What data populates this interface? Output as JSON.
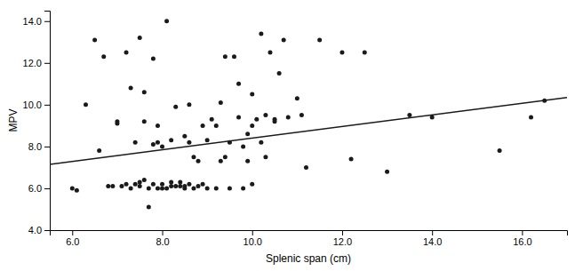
{
  "chart_data": {
    "type": "scatter",
    "xlabel": "Splenic span (cm)",
    "ylabel": "MPV",
    "xlim": [
      5.5,
      17.0
    ],
    "ylim": [
      4.0,
      14.5
    ],
    "xticks": [
      {
        "value": 6.0,
        "label": "6.0"
      },
      {
        "value": 8.0,
        "label": "8.0"
      },
      {
        "value": 10.0,
        "label": "10.0"
      },
      {
        "value": 12.0,
        "label": "12.0"
      },
      {
        "value": 14.0,
        "label": "14.0"
      },
      {
        "value": 16.0,
        "label": "16.0"
      }
    ],
    "yticks": [
      {
        "value": 4.0,
        "label": "4.0"
      },
      {
        "value": 6.0,
        "label": "6.0"
      },
      {
        "value": 8.0,
        "label": "8.0"
      },
      {
        "value": 10.0,
        "label": "10.0"
      },
      {
        "value": 12.0,
        "label": "12.0"
      },
      {
        "value": 14.0,
        "label": "14.0"
      }
    ],
    "grid": false,
    "series": [
      {
        "type": "scatter",
        "color": "#1a1a1a",
        "x": [
          6.1,
          6.0,
          6.3,
          6.5,
          6.6,
          6.7,
          6.8,
          6.9,
          7.0,
          7.0,
          7.1,
          7.2,
          7.2,
          7.3,
          7.3,
          7.4,
          7.4,
          7.5,
          7.5,
          7.5,
          7.6,
          7.6,
          7.6,
          7.7,
          7.7,
          7.8,
          7.8,
          7.8,
          7.9,
          7.9,
          7.9,
          8.0,
          8.0,
          8.0,
          8.1,
          8.1,
          8.2,
          8.2,
          8.2,
          8.3,
          8.3,
          8.4,
          8.4,
          8.5,
          8.5,
          8.5,
          8.6,
          8.6,
          8.6,
          8.7,
          8.7,
          8.8,
          8.8,
          8.9,
          8.9,
          9.0,
          9.0,
          9.1,
          9.2,
          9.2,
          9.3,
          9.3,
          9.4,
          9.4,
          9.5,
          9.5,
          9.6,
          9.7,
          9.7,
          9.8,
          9.8,
          9.9,
          9.9,
          10.0,
          10.0,
          10.0,
          10.1,
          10.2,
          10.2,
          10.3,
          10.3,
          10.4,
          10.5,
          10.5,
          10.6,
          10.7,
          10.8,
          11.0,
          11.1,
          11.2,
          11.5,
          12.0,
          12.2,
          12.5,
          13.0,
          13.5,
          14.0,
          15.5,
          16.2,
          16.5
        ],
        "values": [
          5.9,
          6.0,
          10.0,
          13.1,
          7.8,
          12.3,
          6.1,
          6.1,
          9.1,
          9.2,
          6.1,
          6.2,
          12.5,
          10.8,
          6.0,
          6.2,
          8.2,
          6.1,
          6.3,
          13.2,
          6.4,
          9.2,
          10.6,
          5.1,
          6.0,
          6.2,
          8.1,
          12.2,
          6.0,
          8.2,
          9.0,
          6.0,
          6.2,
          8.0,
          6.0,
          14.0,
          6.1,
          6.3,
          8.3,
          6.1,
          9.9,
          6.1,
          6.3,
          6.0,
          6.1,
          8.5,
          6.2,
          8.2,
          10.0,
          6.0,
          7.5,
          6.1,
          7.3,
          6.2,
          9.0,
          6.0,
          8.3,
          9.3,
          6.0,
          9.0,
          7.3,
          10.1,
          12.3,
          7.5,
          6.0,
          8.2,
          12.3,
          9.4,
          11.0,
          6.0,
          8.0,
          7.3,
          8.6,
          6.2,
          9.0,
          10.5,
          9.3,
          8.2,
          13.4,
          7.5,
          9.5,
          12.5,
          9.2,
          9.3,
          11.5,
          13.1,
          9.4,
          10.3,
          9.5,
          7.0,
          13.1,
          12.5,
          7.4,
          12.5,
          6.8,
          9.5,
          9.4,
          7.8,
          9.4,
          10.2
        ]
      },
      {
        "type": "line",
        "color": "#1a1a1a",
        "x": [
          5.5,
          17.0
        ],
        "values": [
          7.15,
          10.35
        ]
      }
    ]
  }
}
